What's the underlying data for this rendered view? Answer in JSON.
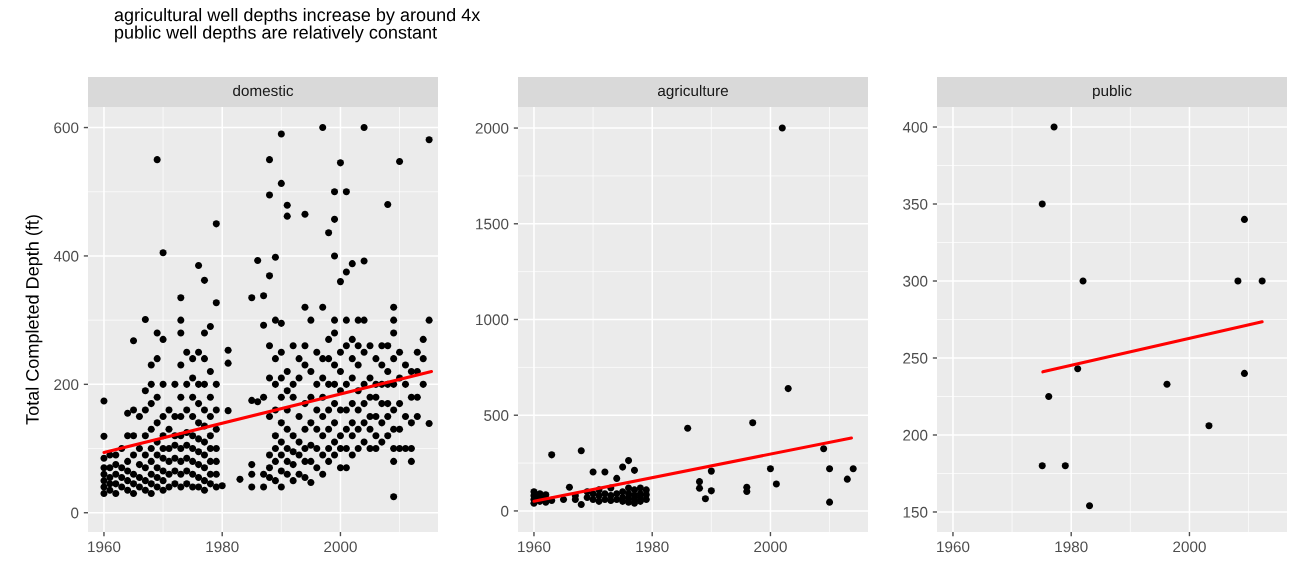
{
  "chart_data": [
    {
      "type": "scatter",
      "title": "domestic",
      "subtitle": "agricultural well depths increase by around 4x\npublic well depths are relatively constant",
      "ylabel": "Total Completed Depth (ft)",
      "xlim": [
        1957.3,
        2016.5
      ],
      "ylim": [
        -30,
        632
      ],
      "xticks": [
        1960,
        1980,
        2000
      ],
      "yticks": [
        0,
        200,
        400,
        600
      ],
      "grid": true,
      "marker": "circle",
      "series": [
        {
          "color": "#000000",
          "x": [
            1960,
            1960,
            1960,
            1960,
            1960,
            1960,
            1960,
            1960,
            1961,
            1961,
            1961,
            1961,
            1961,
            1962,
            1962,
            1962,
            1962,
            1962,
            1963,
            1963,
            1963,
            1963,
            1964,
            1964,
            1964,
            1964,
            1964,
            1964,
            1965,
            1965,
            1965,
            1965,
            1965,
            1965,
            1965,
            1966,
            1966,
            1966,
            1966,
            1966,
            1967,
            1967,
            1967,
            1967,
            1967,
            1967,
            1967,
            1967,
            1968,
            1968,
            1968,
            1968,
            1968,
            1968,
            1968,
            1968,
            1968,
            1969,
            1969,
            1969,
            1969,
            1969,
            1969,
            1969,
            1969,
            1969,
            1969,
            1970,
            1970,
            1970,
            1970,
            1970,
            1970,
            1970,
            1970,
            1970,
            1970,
            1971,
            1971,
            1971,
            1971,
            1971,
            1971,
            1972,
            1972,
            1972,
            1972,
            1972,
            1972,
            1972,
            1973,
            1973,
            1973,
            1973,
            1973,
            1973,
            1973,
            1973,
            1973,
            1973,
            1973,
            1974,
            1974,
            1974,
            1974,
            1974,
            1974,
            1974,
            1974,
            1975,
            1975,
            1975,
            1975,
            1975,
            1975,
            1975,
            1975,
            1975,
            1976,
            1976,
            1976,
            1976,
            1976,
            1976,
            1976,
            1976,
            1976,
            1976,
            1977,
            1977,
            1977,
            1977,
            1977,
            1977,
            1977,
            1977,
            1977,
            1977,
            1977,
            1978,
            1978,
            1978,
            1978,
            1978,
            1978,
            1978,
            1978,
            1978,
            1979,
            1979,
            1979,
            1979,
            1979,
            1979,
            1979,
            1979,
            1979,
            1980,
            1981,
            1981,
            1981,
            1983,
            1985,
            1985,
            1985,
            1985,
            1985,
            1986,
            1986,
            1987,
            1987,
            1987,
            1987,
            1987,
            1988,
            1988,
            1988,
            1988,
            1988,
            1988,
            1988,
            1988,
            1988,
            1989,
            1989,
            1989,
            1989,
            1989,
            1989,
            1989,
            1989,
            1989,
            1990,
            1990,
            1990,
            1990,
            1990,
            1990,
            1990,
            1990,
            1990,
            1990,
            1990,
            1991,
            1991,
            1991,
            1991,
            1991,
            1991,
            1991,
            1991,
            1991,
            1992,
            1992,
            1992,
            1992,
            1992,
            1992,
            1992,
            1993,
            1993,
            1993,
            1993,
            1993,
            1993,
            1994,
            1994,
            1994,
            1994,
            1994,
            1994,
            1994,
            1994,
            1994,
            1995,
            1995,
            1995,
            1995,
            1995,
            1995,
            1995,
            1996,
            1996,
            1996,
            1996,
            1996,
            1996,
            1997,
            1997,
            1997,
            1997,
            1997,
            1997,
            1997,
            1997,
            1997,
            1998,
            1998,
            1998,
            1998,
            1998,
            1998,
            1998,
            1998,
            1999,
            1999,
            1999,
            1999,
            1999,
            1999,
            1999,
            1999,
            1999,
            1999,
            1999,
            2000,
            2000,
            2000,
            2000,
            2000,
            2000,
            2000,
            2000,
            2000,
            2001,
            2001,
            2001,
            2001,
            2001,
            2001,
            2001,
            2001,
            2001,
            2002,
            2002,
            2002,
            2002,
            2002,
            2002,
            2002,
            2002,
            2003,
            2003,
            2003,
            2003,
            2003,
            2003,
            2003,
            2004,
            2004,
            2004,
            2004,
            2004,
            2004,
            2004,
            2004,
            2005,
            2005,
            2005,
            2005,
            2005,
            2005,
            2006,
            2006,
            2006,
            2006,
            2006,
            2006,
            2007,
            2007,
            2007,
            2007,
            2007,
            2007,
            2008,
            2008,
            2008,
            2008,
            2008,
            2008,
            2008,
            2009,
            2009,
            2009,
            2009,
            2009,
            2009,
            2009,
            2009,
            2009,
            2009,
            2010,
            2010,
            2010,
            2010,
            2010,
            2010,
            2011,
            2011,
            2011,
            2011,
            2012,
            2012,
            2012,
            2012,
            2012,
            2013,
            2013,
            2013,
            2013,
            2014,
            2014,
            2014,
            2015,
            2015,
            2015
          ],
          "values": [
            30,
            40,
            50,
            60,
            70,
            85,
            119,
            174,
            35,
            45,
            55,
            70,
            90,
            30,
            45,
            60,
            75,
            90,
            40,
            55,
            70,
            100,
            35,
            50,
            65,
            80,
            120,
            155,
            30,
            45,
            60,
            90,
            120,
            160,
            268,
            40,
            55,
            75,
            100,
            150,
            35,
            50,
            70,
            90,
            120,
            160,
            190,
            301,
            30,
            45,
            60,
            80,
            100,
            130,
            170,
            200,
            230,
            40,
            55,
            70,
            90,
            110,
            140,
            180,
            240,
            280,
            550,
            35,
            50,
            65,
            85,
            100,
            120,
            150,
            200,
            270,
            405,
            40,
            60,
            80,
            100,
            130,
            160,
            45,
            65,
            85,
            105,
            120,
            150,
            200,
            40,
            60,
            80,
            100,
            120,
            150,
            180,
            230,
            280,
            300,
            335,
            45,
            65,
            85,
            105,
            125,
            160,
            200,
            250,
            40,
            60,
            80,
            100,
            120,
            150,
            180,
            210,
            240,
            40,
            55,
            75,
            95,
            115,
            140,
            170,
            200,
            250,
            385,
            35,
            50,
            70,
            90,
            110,
            135,
            160,
            200,
            240,
            280,
            362,
            45,
            60,
            80,
            100,
            120,
            150,
            180,
            220,
            290,
            40,
            60,
            80,
            100,
            130,
            160,
            200,
            327,
            450,
            42,
            159,
            233,
            253,
            52,
            40,
            60,
            75,
            175,
            335,
            173,
            393,
            40,
            60,
            180,
            292,
            338,
            55,
            70,
            90,
            150,
            210,
            260,
            369,
            495,
            550,
            50,
            80,
            100,
            120,
            160,
            200,
            240,
            300,
            398,
            40,
            65,
            90,
            110,
            140,
            180,
            210,
            250,
            295,
            513,
            590,
            60,
            80,
            100,
            130,
            160,
            190,
            220,
            462,
            479,
            50,
            75,
            95,
            120,
            180,
            200,
            260,
            60,
            90,
            110,
            150,
            210,
            240,
            55,
            80,
            100,
            130,
            170,
            230,
            260,
            320,
            465,
            47,
            80,
            105,
            140,
            180,
            220,
            300,
            70,
            100,
            130,
            160,
            200,
            250,
            60,
            90,
            120,
            150,
            180,
            210,
            240,
            320,
            600,
            80,
            100,
            130,
            160,
            200,
            240,
            270,
            436,
            90,
            110,
            140,
            170,
            200,
            230,
            280,
            300,
            400,
            457,
            500,
            70,
            100,
            120,
            160,
            190,
            220,
            250,
            360,
            545,
            70,
            100,
            130,
            160,
            200,
            260,
            300,
            375,
            500,
            90,
            120,
            140,
            170,
            210,
            240,
            270,
            388,
            100,
            130,
            160,
            190,
            230,
            260,
            300,
            110,
            140,
            170,
            200,
            250,
            300,
            392,
            600,
            100,
            130,
            150,
            180,
            210,
            260,
            100,
            120,
            150,
            180,
            200,
            240,
            110,
            140,
            170,
            200,
            230,
            260,
            120,
            150,
            170,
            200,
            220,
            260,
            480,
            25,
            80,
            100,
            130,
            160,
            200,
            240,
            280,
            300,
            320,
            100,
            130,
            170,
            210,
            250,
            547,
            100,
            150,
            200,
            230,
            80,
            100,
            140,
            180,
            220,
            150,
            180,
            220,
            250,
            200,
            240,
            270,
            139,
            300,
            581
          ]
        },
        {
          "type": "line",
          "marker": "none",
          "color": "#ff0000",
          "x": [
            1960,
            2015.4
          ],
          "values": [
            94,
            220
          ]
        }
      ]
    },
    {
      "type": "scatter",
      "title": "agriculture",
      "xlim": [
        1957.3,
        2016.5
      ],
      "ylim": [
        -110,
        2110
      ],
      "xticks": [
        1960,
        1980,
        2000
      ],
      "yticks": [
        0,
        500,
        1000,
        1500,
        2000
      ],
      "grid": true,
      "marker": "circle",
      "series": [
        {
          "color": "#000000",
          "x": [
            1960,
            1960,
            1960,
            1960,
            1961,
            1961,
            1961,
            1962,
            1962,
            1962,
            1963,
            1963,
            1965,
            1966,
            1967,
            1967,
            1968,
            1968,
            1969,
            1969,
            1970,
            1970,
            1970,
            1971,
            1971,
            1971,
            1972,
            1972,
            1972,
            1973,
            1973,
            1973,
            1974,
            1974,
            1974,
            1975,
            1975,
            1975,
            1975,
            1976,
            1976,
            1976,
            1976,
            1976,
            1977,
            1977,
            1977,
            1977,
            1977,
            1978,
            1978,
            1978,
            1978,
            1979,
            1979,
            1979,
            1986,
            1988,
            1988,
            1989,
            1990,
            1990,
            1996,
            1996,
            1997,
            2000,
            2001,
            2002,
            2003,
            2009,
            2010,
            2010,
            2013,
            2014
          ],
          "values": [
            40,
            60,
            80,
            100,
            50,
            70,
            90,
            45,
            65,
            85,
            55,
            293,
            60,
            124,
            60,
            80,
            34,
            314,
            70,
            100,
            60,
            90,
            203,
            50,
            80,
            110,
            60,
            90,
            203,
            55,
            80,
            120,
            60,
            90,
            170,
            50,
            70,
            100,
            229,
            45,
            65,
            90,
            120,
            263,
            40,
            60,
            80,
            110,
            212,
            50,
            70,
            90,
            120,
            60,
            85,
            110,
            432,
            119,
            153,
            64,
            105,
            208,
            102,
            124,
            461,
            220,
            141,
            2000,
            639,
            325,
            46,
            220,
            166,
            220
          ]
        },
        {
          "type": "line",
          "marker": "none",
          "color": "#ff0000",
          "x": [
            1960,
            2013.7
          ],
          "values": [
            51,
            381
          ]
        }
      ]
    },
    {
      "type": "scatter",
      "title": "public",
      "xlim": [
        1957.3,
        2016.5
      ],
      "ylim": [
        137,
        413
      ],
      "xticks": [
        1960,
        1980,
        2000
      ],
      "yticks": [
        150,
        200,
        250,
        300,
        350,
        400
      ],
      "grid": true,
      "marker": "circle",
      "series": [
        {
          "color": "#000000",
          "x": [
            1977.1,
            1975.1,
            1982,
            2008.2,
            2012.3,
            2009.3,
            1981.1,
            1976.2,
            1996.2,
            2009.3,
            2003.3,
            1975.1,
            1979,
            1983.1
          ],
          "values": [
            400,
            350,
            300,
            300,
            300,
            340,
            243,
            225,
            233,
            240,
            206,
            180,
            180,
            154
          ]
        },
        {
          "type": "line",
          "marker": "none",
          "color": "#ff0000",
          "x": [
            1975.2,
            2012.3
          ],
          "values": [
            241,
            273.5
          ]
        }
      ]
    }
  ]
}
